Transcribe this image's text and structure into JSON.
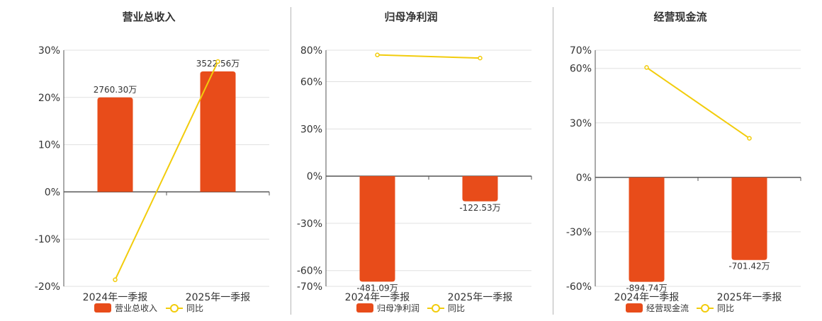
{
  "colors": {
    "bar": "#e84c1a",
    "line": "#f2cc0c",
    "grid": "#e0e0e0",
    "axis": "#555555",
    "text": "#333333"
  },
  "charts": [
    {
      "title": "营业总收入",
      "legend": {
        "bar_label": "营业总收入",
        "line_label": "同比"
      },
      "chart_data": {
        "type": "bar",
        "categories": [
          "2024年一季报",
          "2025年一季报"
        ],
        "series": [
          {
            "name": "营业总收入",
            "type": "bar",
            "values": [
              20,
              25.5
            ],
            "labels": [
              "2760.30万",
              "3522.56万"
            ]
          },
          {
            "name": "同比",
            "type": "line",
            "values": [
              -18.6,
              27.6
            ]
          }
        ],
        "ylim": [
          -20,
          30
        ],
        "yticks": [
          -20,
          -10,
          0,
          10,
          20,
          30
        ],
        "ytick_labels": [
          "-20%",
          "-10%",
          "0%",
          "10%",
          "20%",
          "30%"
        ]
      }
    },
    {
      "title": "归母净利润",
      "legend": {
        "bar_label": "归母净利润",
        "line_label": "同比"
      },
      "chart_data": {
        "type": "bar",
        "categories": [
          "2024年一季报",
          "2025年一季报"
        ],
        "series": [
          {
            "name": "归母净利润",
            "type": "bar",
            "values": [
              -67,
              -16
            ],
            "labels": [
              "-481.09万",
              "-122.53万"
            ]
          },
          {
            "name": "同比",
            "type": "line",
            "values": [
              77,
              75
            ]
          }
        ],
        "ylim": [
          -70,
          80
        ],
        "yticks": [
          -70,
          -60,
          -30,
          0,
          30,
          60,
          80
        ],
        "ytick_labels": [
          "-70%",
          "-60%",
          "-30%",
          "0%",
          "30%",
          "60%",
          "80%"
        ]
      }
    },
    {
      "title": "经营现金流",
      "legend": {
        "bar_label": "经营现金流",
        "line_label": "同比"
      },
      "chart_data": {
        "type": "bar",
        "categories": [
          "2024年一季报",
          "2025年一季报"
        ],
        "series": [
          {
            "name": "经营现金流",
            "type": "bar",
            "values": [
              -57.5,
              -45.5
            ],
            "labels": [
              "-894.74万",
              "-701.42万"
            ]
          },
          {
            "name": "同比",
            "type": "line",
            "values": [
              60.5,
              21.5
            ]
          }
        ],
        "ylim": [
          -60,
          70
        ],
        "yticks": [
          -60,
          -30,
          0,
          30,
          60,
          70
        ],
        "ytick_labels": [
          "-60%",
          "-30%",
          "0%",
          "30%",
          "60%",
          "70%"
        ]
      }
    }
  ]
}
